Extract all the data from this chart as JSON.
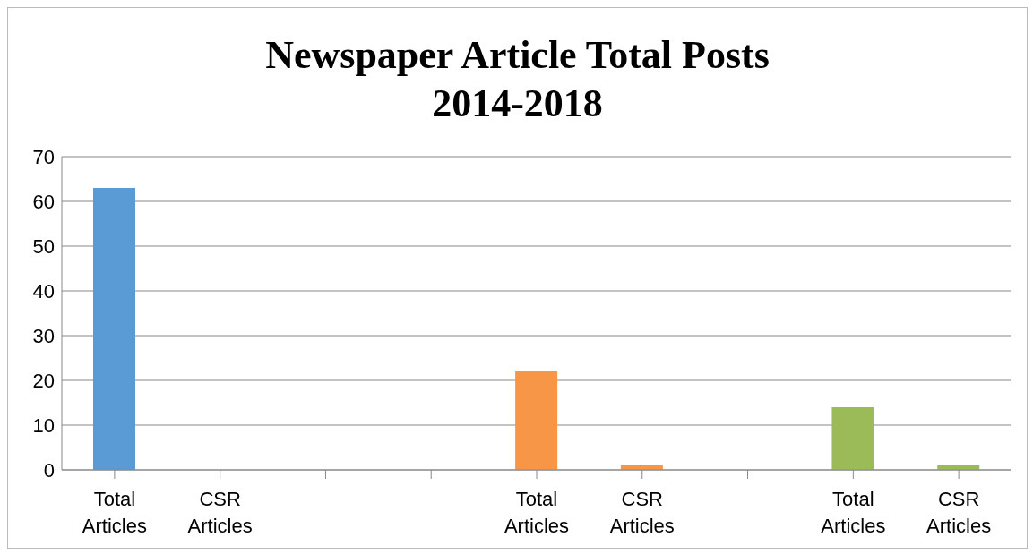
{
  "chart_data": {
    "type": "bar",
    "title": "Newspaper Article Total Posts\n2014-2018",
    "categories": [
      "Total Articles",
      "CSR Articles",
      null,
      null,
      "Total Articles",
      "CSR Articles",
      null,
      "Total Articles",
      "CSR Articles"
    ],
    "values": [
      63,
      0,
      null,
      null,
      22,
      1,
      null,
      14,
      1
    ],
    "colors": [
      "#5b9bd5",
      "#5b9bd5",
      "#5b9bd5",
      "#f79646",
      "#f79646",
      "#f79646",
      "#9bbb59",
      "#9bbb59",
      "#9bbb59"
    ],
    "ylim": [
      0,
      70
    ],
    "yticks": [
      0,
      10,
      20,
      30,
      40,
      50,
      60,
      70
    ],
    "grid": "y"
  }
}
